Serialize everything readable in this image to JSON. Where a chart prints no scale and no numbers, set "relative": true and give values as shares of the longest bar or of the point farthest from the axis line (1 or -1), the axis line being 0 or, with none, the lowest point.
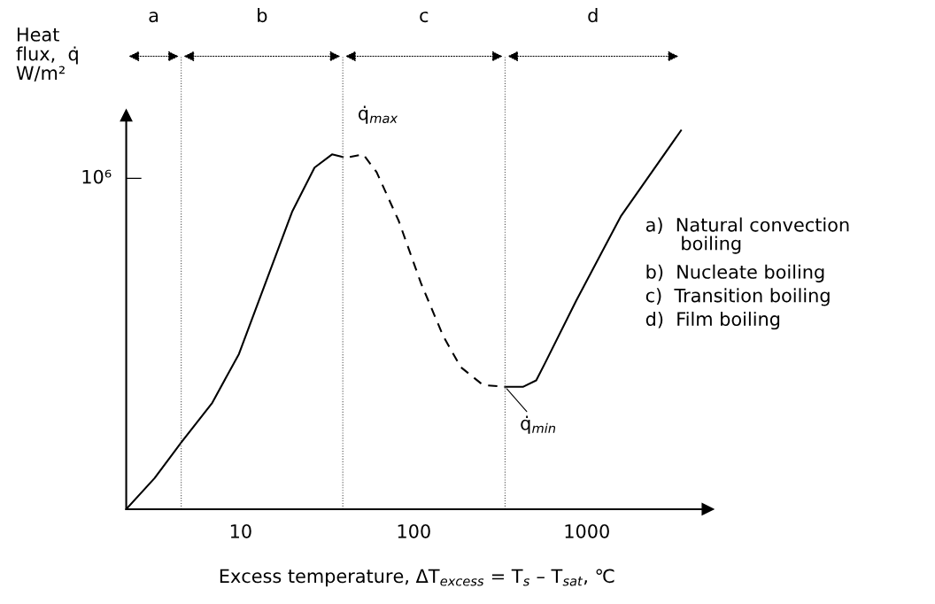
{
  "chart_data": {
    "type": "line",
    "relative": true,
    "log": "x",
    "xlabel": "Excess temperature, ΔT$_{excess}$ = T$_{s}$ – T$_{sat}$, ℃",
    "ylabel": "Heat\nflux,  q̇\nW/m²",
    "xlim": [
      2.18,
      5000
    ],
    "xticks": [
      10,
      100,
      1000
    ],
    "grid": false,
    "legend": false,
    "series": [
      {
        "color": "#000000",
        "line_style": "solid",
        "x": [
          2.18,
          3.18,
          4.53,
          6.85,
          9.77,
          13.9,
          19.8,
          26.7,
          33.7,
          38.9
        ],
        "values": [
          0,
          0.082,
          0.176,
          0.281,
          0.41,
          0.597,
          0.785,
          0.902,
          0.937,
          0.93
        ]
      },
      {
        "color": "#000000",
        "line_style": "dashed",
        "x": [
          42.7,
          51.0,
          61.0,
          81.9,
          110,
          148,
          187,
          251,
          337
        ],
        "values": [
          0.93,
          0.937,
          0.89,
          0.761,
          0.597,
          0.457,
          0.375,
          0.328,
          0.323
        ]
      },
      {
        "color": "#000000",
        "line_style": "solid",
        "x": [
          337,
          427,
          510,
          574,
          867,
          1570,
          3500
        ],
        "values": [
          0.323,
          0.323,
          0.34,
          0.386,
          0.55,
          0.773,
          1
        ]
      }
    ],
    "ref_lines": [
      {
        "axis": "x",
        "value": 4.53,
        "line_style": "dotted"
      },
      {
        "axis": "x",
        "value": 38.9,
        "line_style": "dotted"
      },
      {
        "axis": "x",
        "value": 337,
        "line_style": "dotted"
      }
    ],
    "annotations": [
      "a",
      "b",
      "c",
      "d",
      "10⁶",
      {
        "text": "q̇$_{max}$",
        "x": 38.9,
        "y": 0.937
      },
      {
        "text": "q̇$_{min}$",
        "x": 337,
        "y": 0.323
      },
      "a)  Natural convection\n      boiling",
      "b)  Nucleate boiling",
      "c)  Transition boiling",
      "d)  Film boiling"
    ]
  }
}
